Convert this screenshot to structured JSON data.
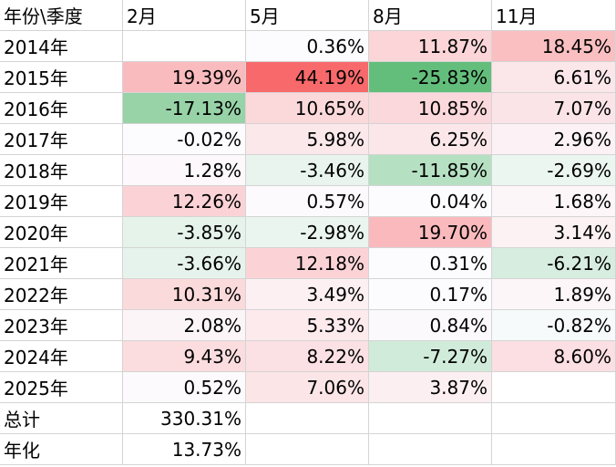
{
  "header": [
    "年份\\季度",
    "2月",
    "5月",
    "8月",
    "11月"
  ],
  "rows": [
    {
      "year": "2014年",
      "values": [
        "",
        "0.36%",
        "11.87%",
        "18.45%"
      ]
    },
    {
      "year": "2015年",
      "values": [
        "19.39%",
        "44.19%",
        "-25.83%",
        "6.61%"
      ]
    },
    {
      "year": "2016年",
      "values": [
        "-17.13%",
        "10.65%",
        "10.85%",
        "7.07%"
      ]
    },
    {
      "year": "2017年",
      "values": [
        "-0.02%",
        "5.98%",
        "6.25%",
        "2.96%"
      ]
    },
    {
      "year": "2018年",
      "values": [
        "1.28%",
        "-3.46%",
        "-11.85%",
        "-2.69%"
      ]
    },
    {
      "year": "2019年",
      "values": [
        "12.26%",
        "0.57%",
        "0.04%",
        "1.68%"
      ]
    },
    {
      "year": "2020年",
      "values": [
        "-3.85%",
        "-2.98%",
        "19.70%",
        "3.14%"
      ]
    },
    {
      "year": "2021年",
      "values": [
        "-3.66%",
        "12.18%",
        "0.31%",
        "-6.21%"
      ]
    },
    {
      "year": "2022年",
      "values": [
        "10.31%",
        "3.49%",
        "0.17%",
        "1.89%"
      ]
    },
    {
      "year": "2023年",
      "values": [
        "2.08%",
        "5.33%",
        "0.84%",
        "-0.82%"
      ]
    },
    {
      "year": "2024年",
      "values": [
        "9.43%",
        "8.22%",
        "-7.27%",
        "8.60%"
      ]
    },
    {
      "year": "2025年",
      "values": [
        "0.52%",
        "7.06%",
        "3.87%",
        ""
      ]
    }
  ],
  "summary": [
    {
      "label": "总计",
      "value": "330.31%"
    },
    {
      "label": "年化",
      "value": "13.73%"
    }
  ],
  "colors": {
    "positive_max": "#f8696b",
    "negative_max": "#63be7b",
    "neutral": "#fcfcff",
    "grid_line": "#d4d4d4"
  }
}
